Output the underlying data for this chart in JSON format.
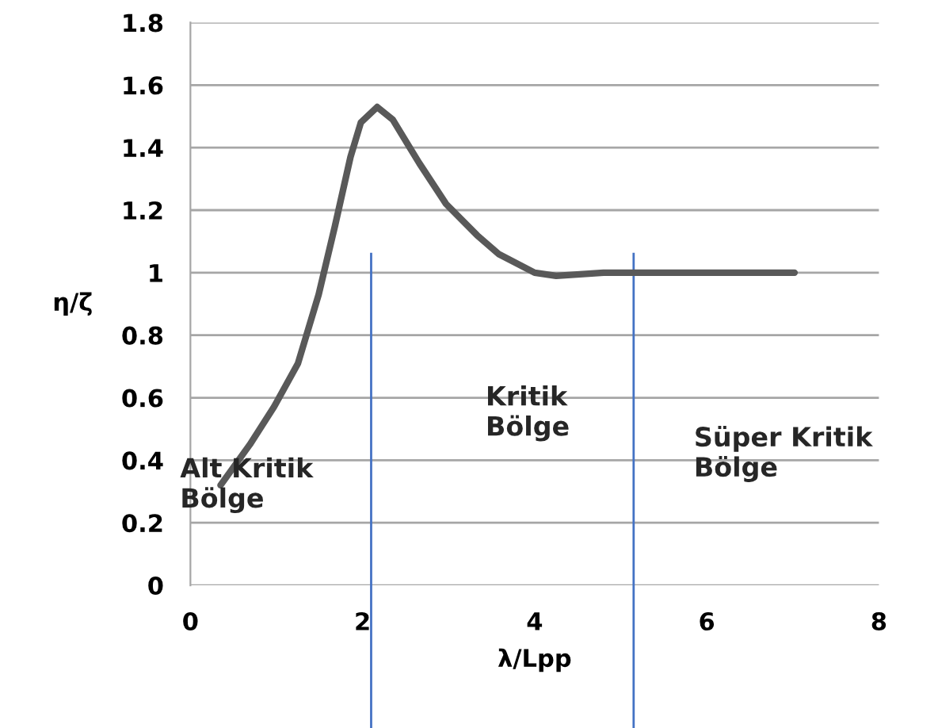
{
  "chart_data": {
    "type": "line",
    "xlabel": "λ/Lpp",
    "ylabel": "η/ζ",
    "x": [
      0.35,
      0.69,
      0.97,
      1.25,
      1.49,
      1.68,
      1.86,
      1.98,
      2.17,
      2.35,
      2.66,
      2.97,
      3.33,
      3.58,
      4.0,
      4.25,
      4.8,
      7.02
    ],
    "series": [
      {
        "color": "#595959",
        "values": [
          0.32,
          0.45,
          0.57,
          0.71,
          0.93,
          1.15,
          1.37,
          1.48,
          1.53,
          1.49,
          1.35,
          1.22,
          1.12,
          1.06,
          1.0,
          0.99,
          1.0,
          1.0
        ]
      }
    ],
    "xlim": [
      0,
      8
    ],
    "xticks": [
      0,
      2,
      4,
      6,
      8
    ],
    "ylim": [
      0,
      1.8
    ],
    "yticks": [
      0,
      0.2,
      0.4,
      0.6,
      0.8,
      1,
      1.2,
      1.4,
      1.6,
      1.8
    ],
    "grid": "y",
    "marker": "none",
    "line_style": "solid",
    "ref_lines": [
      {
        "axis": "x",
        "value": 2.1,
        "color": "#4472c4"
      },
      {
        "axis": "x",
        "value": 5.15,
        "color": "#4472c4"
      }
    ],
    "annotations": [
      "Alt Kritik\nBölge",
      "Kritik\nBölge",
      "Süper Kritik\nBölge"
    ]
  }
}
